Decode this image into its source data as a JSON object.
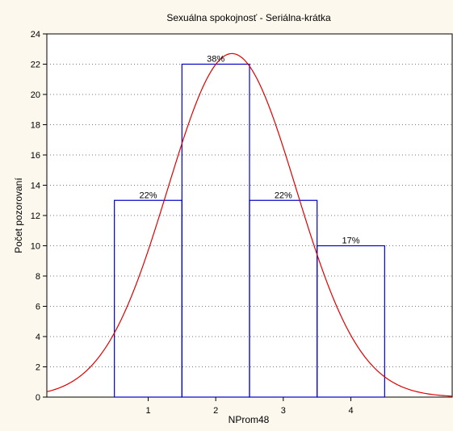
{
  "chart_data": {
    "type": "bar",
    "title": "Sexuálna spokojnosť - Seriálna-krátka",
    "xlabel": "NProm48",
    "ylabel": "Počet pozorovaní",
    "categories": [
      "1",
      "2",
      "3",
      "4"
    ],
    "values": [
      13,
      22,
      13,
      10
    ],
    "data_labels": [
      "22%",
      "38%",
      "22%",
      "17%"
    ],
    "ylim": [
      0,
      24
    ],
    "yticks": [
      0,
      2,
      4,
      6,
      8,
      10,
      12,
      14,
      16,
      18,
      20,
      22,
      24
    ],
    "xlim": [
      -0.5,
      5.5
    ],
    "grid": "horizontal dotted",
    "bar_color": "#0000c8",
    "curve_color": "#e00000",
    "background_color": "#fdf8ee",
    "fit_curve": {
      "type": "normal",
      "mean": 2.24,
      "sd": 0.95,
      "peak": 22.7
    }
  }
}
